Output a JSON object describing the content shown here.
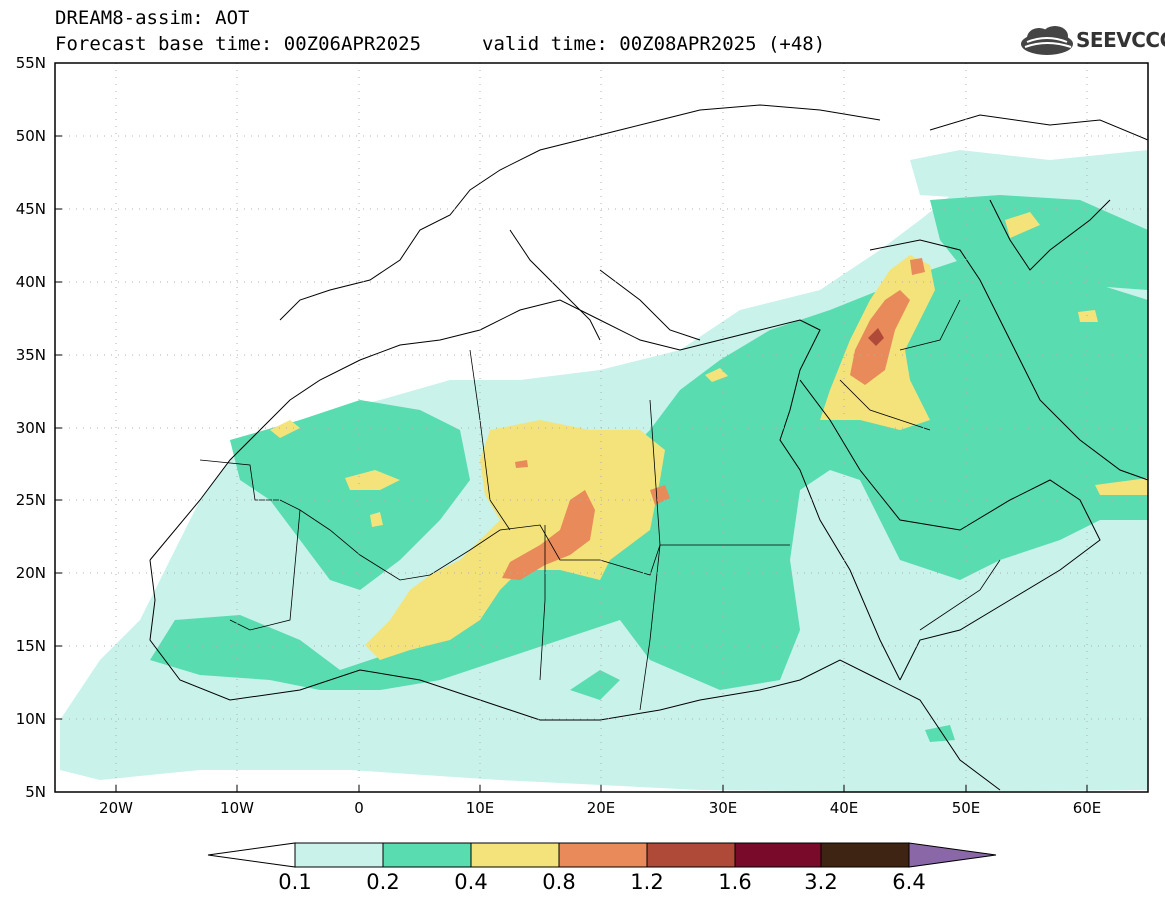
{
  "header": {
    "title_line1": "DREAM8-assim: AOT",
    "title_line2": "Forecast base time: 00Z06APR2025",
    "valid_time": "valid time: 00Z08APR2025 (+48)",
    "logo_text": "SEEVCCC"
  },
  "map": {
    "variable": "AOT",
    "lon_range": [
      -25,
      65
    ],
    "lat_range": [
      5,
      55
    ],
    "lat_labels": [
      "55N",
      "50N",
      "45N",
      "40N",
      "35N",
      "30N",
      "25N",
      "20N",
      "15N",
      "10N",
      "5N"
    ],
    "lat_values": [
      55,
      50,
      45,
      40,
      35,
      30,
      25,
      20,
      15,
      10,
      5
    ],
    "lon_labels": [
      "20W",
      "10W",
      "0",
      "10E",
      "20E",
      "30E",
      "40E",
      "50E",
      "60E"
    ],
    "lon_values": [
      -20,
      -10,
      0,
      10,
      20,
      30,
      40,
      50,
      60
    ],
    "grid": "dotted"
  },
  "colorbar": {
    "levels": [
      "0.1",
      "0.2",
      "0.4",
      "0.8",
      "1.2",
      "1.6",
      "3.2",
      "6.4"
    ],
    "colors": [
      "#ffffff",
      "#c8f2ea",
      "#58dcb0",
      "#f4e37a",
      "#e88a5a",
      "#b04a38",
      "#7a0a2a",
      "#3e2412",
      "#8a68a8"
    ]
  },
  "legend_colors": {
    "aot_0_1_0_2": "#c8f2ea",
    "aot_0_2_0_4": "#58dcb0",
    "aot_0_4_0_8": "#f4e37a",
    "aot_0_8_1_2": "#e88a5a",
    "aot_1_2_1_6": "#b04a38"
  }
}
